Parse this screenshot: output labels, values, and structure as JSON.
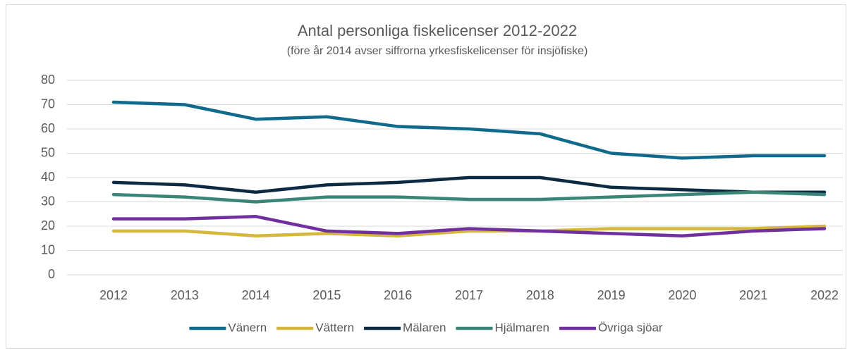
{
  "chart_data": {
    "type": "line",
    "title": "Antal personliga fiskelicenser 2012-2022",
    "subtitle": "(före år 2014 avser siffrorna yrkesfiskelicenser för insjöfiske)",
    "categories": [
      "2012",
      "2013",
      "2014",
      "2015",
      "2016",
      "2017",
      "2018",
      "2019",
      "2020",
      "2021",
      "2022"
    ],
    "series": [
      {
        "name": "Vänern",
        "color": "#0f6a8b",
        "values": [
          71,
          70,
          64,
          65,
          61,
          60,
          58,
          50,
          48,
          49,
          49
        ]
      },
      {
        "name": "Vättern",
        "color": "#d4b73c",
        "values": [
          18,
          18,
          16,
          17,
          16,
          18,
          18,
          19,
          19,
          19,
          20
        ]
      },
      {
        "name": "Mälaren",
        "color": "#0d2a45",
        "values": [
          38,
          37,
          34,
          37,
          38,
          40,
          40,
          36,
          35,
          34,
          34
        ]
      },
      {
        "name": "Hjälmaren",
        "color": "#3a8577",
        "values": [
          33,
          32,
          30,
          32,
          32,
          31,
          31,
          32,
          33,
          34,
          33
        ]
      },
      {
        "name": "Övriga sjöar",
        "color": "#7030a0",
        "values": [
          23,
          23,
          24,
          18,
          17,
          19,
          18,
          17,
          16,
          18,
          19
        ]
      }
    ],
    "ylim": [
      0,
      80
    ],
    "yticks": [
      0,
      10,
      20,
      30,
      40,
      50,
      60,
      70,
      80
    ],
    "grid": true,
    "legend": "bottom"
  }
}
